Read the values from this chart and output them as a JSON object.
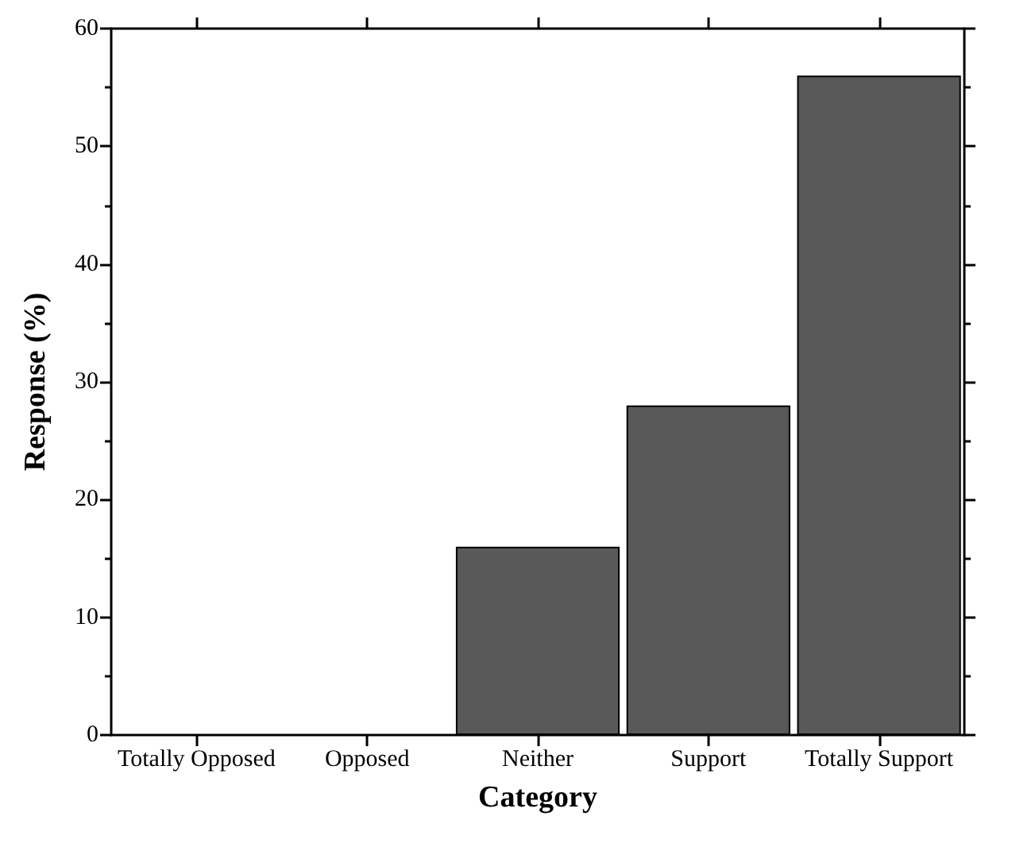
{
  "chart_data": {
    "type": "bar",
    "xlabel": "Category",
    "ylabel": "Response (%)",
    "categories": [
      "Totally Opposed",
      "Opposed",
      "Neither",
      "Support",
      "Totally Support"
    ],
    "values": [
      0,
      0,
      16,
      28,
      56
    ],
    "color": "#595959",
    "ylim": [
      0,
      60
    ],
    "yticks": [
      0,
      10,
      20,
      30,
      40,
      50,
      60
    ],
    "grid": false
  }
}
